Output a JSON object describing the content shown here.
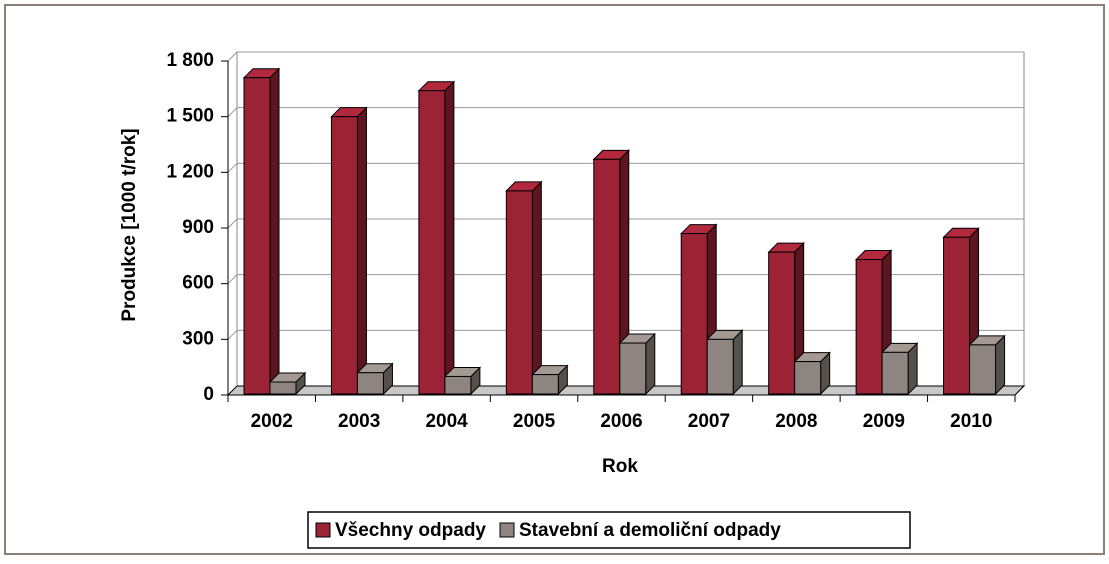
{
  "chart_data": {
    "type": "bar",
    "x_label": "Rok",
    "y_label": "Produkce [1000 t/rok]",
    "categories": [
      "2002",
      "2003",
      "2004",
      "2005",
      "2006",
      "2007",
      "2008",
      "2009",
      "2010"
    ],
    "series": [
      {
        "name": "Všechny odpady",
        "color": "#9b2335",
        "values": [
          1710,
          1500,
          1640,
          1100,
          1270,
          870,
          770,
          730,
          850
        ]
      },
      {
        "name": "Stavební a demoliční odpady",
        "color": "#8f8580",
        "values": [
          70,
          120,
          100,
          110,
          280,
          300,
          180,
          230,
          270
        ]
      }
    ],
    "ylim": [
      0,
      1800
    ],
    "yticks": [
      0,
      300,
      600,
      900,
      {
        "value": 1200,
        "label": "1 200"
      },
      {
        "value": 1500,
        "label": "1 500"
      },
      {
        "value": 1800,
        "label": "1 800"
      }
    ],
    "grid": true,
    "legend": "bottom"
  }
}
